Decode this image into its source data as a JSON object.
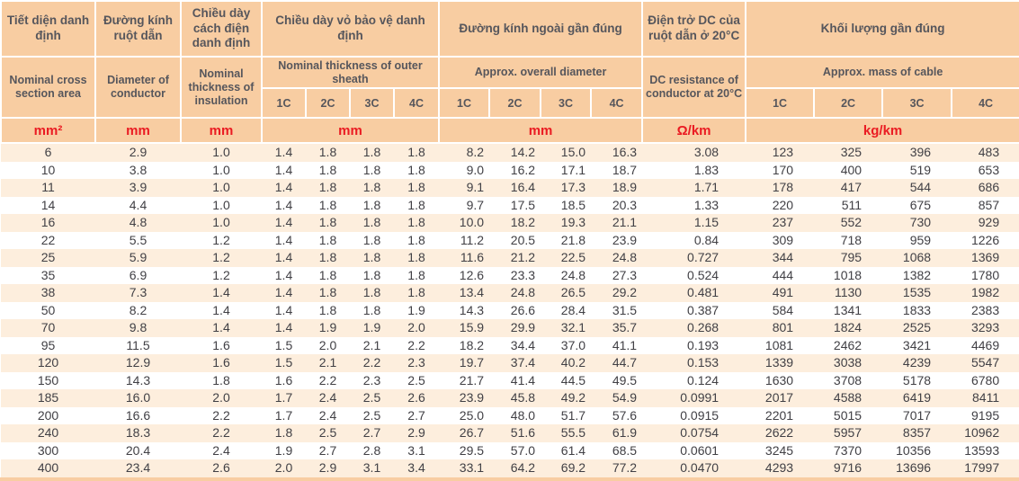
{
  "table": {
    "header": {
      "cross_section": {
        "vn": "Tiết diện danh định",
        "en": "Nominal cross section area",
        "unit": "mm²"
      },
      "conductor_diameter": {
        "vn": "Đường kính ruột dẫn",
        "en": "Diameter of conductor",
        "unit": "mm"
      },
      "insulation": {
        "vn": "Chiều dày cách điện danh định",
        "en": "Nominal thickness of insulation",
        "unit": "mm"
      },
      "sheath": {
        "vn": "Chiều dày vỏ bảo vệ danh định",
        "en": "Nominal thickness of outer sheath",
        "unit": "mm",
        "subcols": [
          "1C",
          "2C",
          "3C",
          "4C"
        ]
      },
      "overall_diameter": {
        "vn": "Đường kính ngoài gần đúng",
        "en": "Approx. overall diameter",
        "unit": "mm",
        "subcols": [
          "1C",
          "2C",
          "3C",
          "4C"
        ]
      },
      "dc_resistance": {
        "vn": "Điện trở DC của ruột dẫn ở 20°C",
        "en": "DC resistance of conductor at 20°C",
        "unit": "Ω/km"
      },
      "mass": {
        "vn": "Khối lượng gần đúng",
        "en": "Approx. mass of cable",
        "unit": "kg/km",
        "subcols": [
          "1C",
          "2C",
          "3C",
          "4C"
        ]
      }
    },
    "column_keys": [
      "cross-section",
      "conductor-diameter",
      "insulation",
      "sheath-1c",
      "sheath-2c",
      "sheath-3c",
      "sheath-4c",
      "overall-diameter-1c",
      "overall-diameter-2c",
      "overall-diameter-3c",
      "overall-diameter-4c",
      "dc-resistance",
      "mass-1c",
      "mass-2c",
      "mass-3c",
      "mass-4c"
    ],
    "rows": [
      [
        "6",
        "2.9",
        "1.0",
        "1.4",
        "1.8",
        "1.8",
        "1.8",
        "8.2",
        "14.2",
        "15.0",
        "16.3",
        "3.08",
        "123",
        "325",
        "396",
        "483"
      ],
      [
        "10",
        "3.8",
        "1.0",
        "1.4",
        "1.8",
        "1.8",
        "1.8",
        "9.0",
        "16.2",
        "17.1",
        "18.7",
        "1.83",
        "170",
        "400",
        "519",
        "653"
      ],
      [
        "11",
        "3.9",
        "1.0",
        "1.4",
        "1.8",
        "1.8",
        "1.8",
        "9.1",
        "16.4",
        "17.3",
        "18.9",
        "1.71",
        "178",
        "417",
        "544",
        "686"
      ],
      [
        "14",
        "4.4",
        "1.0",
        "1.4",
        "1.8",
        "1.8",
        "1.8",
        "9.7",
        "17.5",
        "18.5",
        "20.3",
        "1.33",
        "220",
        "511",
        "675",
        "857"
      ],
      [
        "16",
        "4.8",
        "1.0",
        "1.4",
        "1.8",
        "1.8",
        "1.8",
        "10.0",
        "18.2",
        "19.3",
        "21.1",
        "1.15",
        "237",
        "552",
        "730",
        "929"
      ],
      [
        "22",
        "5.5",
        "1.2",
        "1.4",
        "1.8",
        "1.8",
        "1.8",
        "11.2",
        "20.5",
        "21.8",
        "23.9",
        "0.84",
        "309",
        "718",
        "959",
        "1226"
      ],
      [
        "25",
        "5.9",
        "1.2",
        "1.4",
        "1.8",
        "1.8",
        "1.8",
        "11.6",
        "21.2",
        "22.5",
        "24.8",
        "0.727",
        "344",
        "795",
        "1068",
        "1369"
      ],
      [
        "35",
        "6.9",
        "1.2",
        "1.4",
        "1.8",
        "1.8",
        "1.8",
        "12.6",
        "23.3",
        "24.8",
        "27.3",
        "0.524",
        "444",
        "1018",
        "1382",
        "1780"
      ],
      [
        "38",
        "7.3",
        "1.4",
        "1.4",
        "1.8",
        "1.8",
        "1.8",
        "13.4",
        "24.8",
        "26.5",
        "29.2",
        "0.481",
        "491",
        "1130",
        "1535",
        "1982"
      ],
      [
        "50",
        "8.2",
        "1.4",
        "1.4",
        "1.8",
        "1.8",
        "1.9",
        "14.3",
        "26.6",
        "28.4",
        "31.5",
        "0.387",
        "584",
        "1341",
        "1833",
        "2383"
      ],
      [
        "70",
        "9.8",
        "1.4",
        "1.4",
        "1.9",
        "1.9",
        "2.0",
        "15.9",
        "29.9",
        "32.1",
        "35.7",
        "0.268",
        "801",
        "1824",
        "2525",
        "3293"
      ],
      [
        "95",
        "11.5",
        "1.6",
        "1.5",
        "2.0",
        "2.1",
        "2.2",
        "18.2",
        "34.4",
        "37.0",
        "41.1",
        "0.193",
        "1081",
        "2462",
        "3421",
        "4469"
      ],
      [
        "120",
        "12.9",
        "1.6",
        "1.5",
        "2.1",
        "2.2",
        "2.3",
        "19.7",
        "37.4",
        "40.2",
        "44.7",
        "0.153",
        "1339",
        "3038",
        "4239",
        "5547"
      ],
      [
        "150",
        "14.3",
        "1.8",
        "1.6",
        "2.2",
        "2.3",
        "2.5",
        "21.7",
        "41.4",
        "44.5",
        "49.5",
        "0.124",
        "1630",
        "3708",
        "5178",
        "6780"
      ],
      [
        "185",
        "16.0",
        "2.0",
        "1.7",
        "2.4",
        "2.5",
        "2.6",
        "23.9",
        "45.8",
        "49.2",
        "54.9",
        "0.0991",
        "2017",
        "4588",
        "6419",
        "8411"
      ],
      [
        "200",
        "16.6",
        "2.2",
        "1.7",
        "2.4",
        "2.5",
        "2.7",
        "25.0",
        "48.0",
        "51.7",
        "57.6",
        "0.0915",
        "2201",
        "5015",
        "7017",
        "9195"
      ],
      [
        "240",
        "18.3",
        "2.2",
        "1.8",
        "2.5",
        "2.7",
        "2.9",
        "26.7",
        "51.6",
        "55.5",
        "61.9",
        "0.0754",
        "2622",
        "5957",
        "8357",
        "10962"
      ],
      [
        "300",
        "20.4",
        "2.4",
        "1.9",
        "2.7",
        "2.8",
        "3.1",
        "29.5",
        "57.0",
        "61.4",
        "68.5",
        "0.0601",
        "3245",
        "7370",
        "10356",
        "13593"
      ],
      [
        "400",
        "23.4",
        "2.6",
        "2.0",
        "2.9",
        "3.1",
        "3.4",
        "33.1",
        "64.2",
        "69.2",
        "77.2",
        "0.0470",
        "4293",
        "9716",
        "13696",
        "17997"
      ]
    ]
  },
  "colors": {
    "header_background": "#f8cda2",
    "stripe_row_background": "#fdeedd",
    "white_row_background": "#ffffff",
    "units_text": "#ea1b22",
    "header_text": "#56565c",
    "data_text": "#414045",
    "grid_lines": "#ffffff"
  }
}
